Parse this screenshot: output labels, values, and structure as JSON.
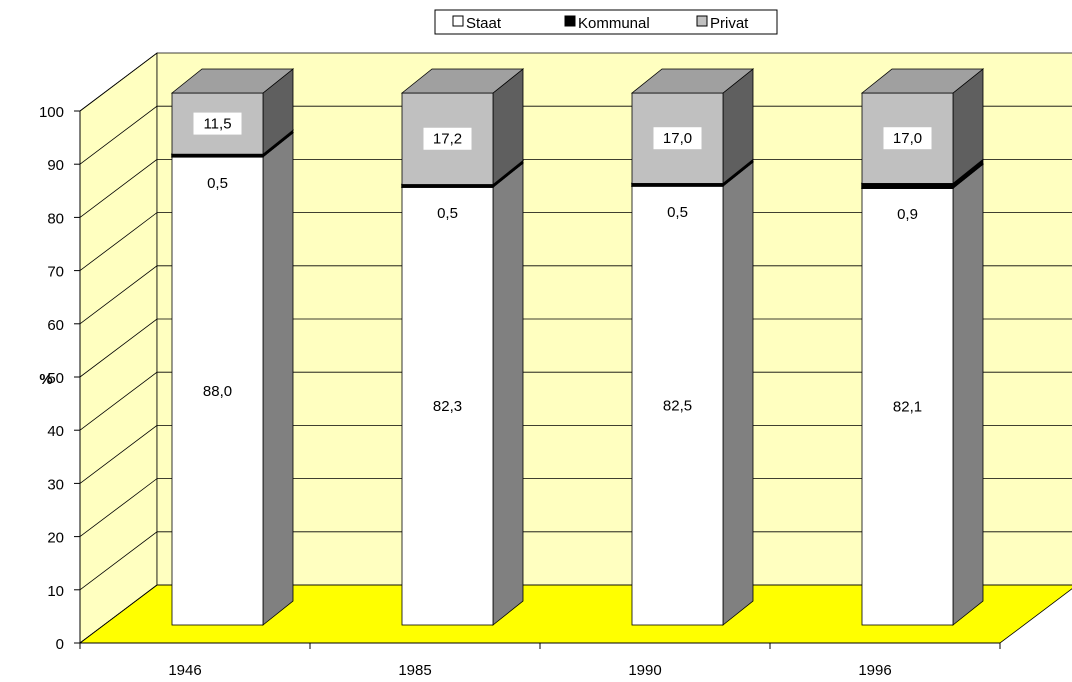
{
  "chart_data": {
    "type": "bar3d_stacked",
    "ylabel": "%",
    "categories": [
      "1946",
      "1985",
      "1990",
      "1996"
    ],
    "series": [
      {
        "name": "Staat",
        "color": "#ffffff",
        "values": [
          88.0,
          82.3,
          82.5,
          82.1
        ],
        "value_labels": [
          "88,0",
          "82,3",
          "82,5",
          "82,1"
        ]
      },
      {
        "name": "Kommunal",
        "color": "#000000",
        "values": [
          0.5,
          0.5,
          0.5,
          0.9
        ],
        "value_labels": [
          "0,5",
          "0,5",
          "0,5",
          "0,9"
        ]
      },
      {
        "name": "Privat",
        "color": "#c0c0c0",
        "values": [
          11.5,
          17.2,
          17.0,
          17.0
        ],
        "value_labels": [
          "11,5",
          "17,2",
          "17,0",
          "17,0"
        ]
      }
    ],
    "ylim": [
      0,
      100
    ],
    "yticks": [
      0,
      10,
      20,
      30,
      40,
      50,
      60,
      70,
      80,
      90,
      100
    ],
    "grid": true,
    "legend": "top"
  }
}
